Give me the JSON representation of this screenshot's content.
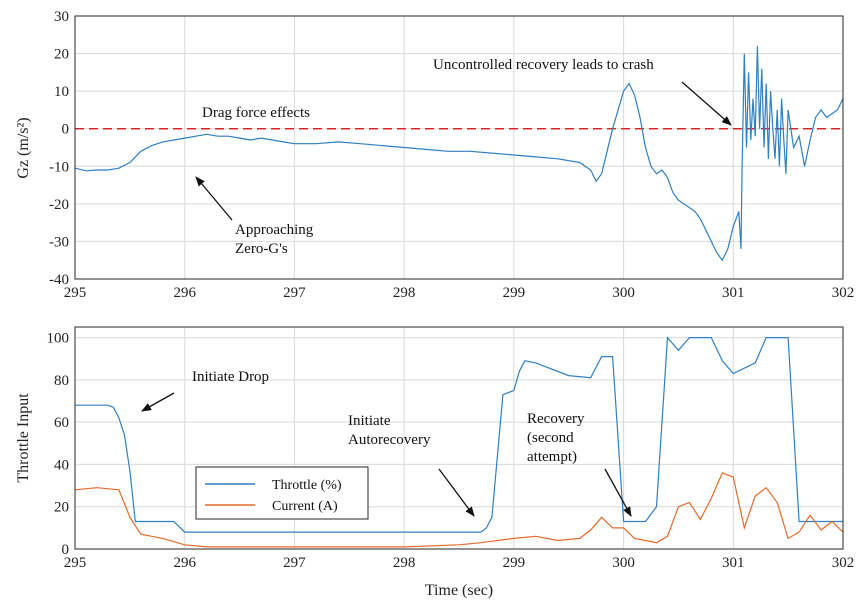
{
  "chart_data": [
    {
      "type": "line",
      "title": "",
      "xlabel": "",
      "ylabel": "Gz (m/s²)",
      "xlim": [
        295,
        302
      ],
      "ylim": [
        -40,
        30
      ],
      "xticks": [
        "295",
        "296",
        "297",
        "298",
        "299",
        "300",
        "301",
        "302"
      ],
      "yticks": [
        "30",
        "20",
        "10",
        "0",
        "-10",
        "-20",
        "-30",
        "-40"
      ],
      "grid": true,
      "reference_line": {
        "y": 0,
        "color": "#d62728",
        "style": "dashed"
      },
      "series": [
        {
          "color": "#2f7fc1",
          "x": [
            295.0,
            295.1,
            295.2,
            295.3,
            295.4,
            295.5,
            295.6,
            295.7,
            295.8,
            295.9,
            296.0,
            296.1,
            296.2,
            296.3,
            296.4,
            296.5,
            296.6,
            296.7,
            296.8,
            296.9,
            297.0,
            297.2,
            297.4,
            297.6,
            297.8,
            298.0,
            298.2,
            298.4,
            298.6,
            298.8,
            299.0,
            299.2,
            299.4,
            299.6,
            299.7,
            299.75,
            299.8,
            299.85,
            299.9,
            299.95,
            300.0,
            300.05,
            300.1,
            300.15,
            300.2,
            300.25,
            300.3,
            300.35,
            300.4,
            300.45,
            300.5,
            300.55,
            300.6,
            300.65,
            300.7,
            300.75,
            300.8,
            300.85,
            300.9,
            300.95,
            301.0,
            301.05,
            301.07,
            301.08,
            301.1,
            301.12,
            301.14,
            301.16,
            301.18,
            301.2,
            301.22,
            301.24,
            301.26,
            301.28,
            301.3,
            301.32,
            301.34,
            301.36,
            301.38,
            301.4,
            301.42,
            301.44,
            301.46,
            301.48,
            301.5,
            301.55,
            301.6,
            301.65,
            301.7,
            301.75,
            301.8,
            301.85,
            301.9,
            301.95,
            302.0
          ],
          "y": [
            -10.5,
            -11.2,
            -11,
            -11,
            -10.5,
            -9,
            -6,
            -4.5,
            -3.5,
            -3,
            -2.5,
            -2,
            -1.5,
            -2,
            -2,
            -2.5,
            -3,
            -2.5,
            -3,
            -3.5,
            -4,
            -4,
            -3.5,
            -4,
            -4.5,
            -5,
            -5.5,
            -6,
            -6,
            -6.5,
            -7,
            -7.5,
            -8,
            -9,
            -11,
            -14,
            -12,
            -6,
            0,
            5,
            10,
            12,
            9,
            3,
            -5,
            -10,
            -12,
            -11,
            -13,
            -17,
            -19,
            -20,
            -21,
            -22,
            -24,
            -27,
            -30,
            -33,
            -35,
            -32,
            -26,
            -22,
            -32,
            -10,
            20,
            -5,
            15,
            -3,
            8,
            -2,
            22,
            0,
            16,
            -5,
            12,
            -8,
            10,
            0,
            -8,
            5,
            -10,
            8,
            -3,
            -12,
            5,
            -5,
            -2,
            -10,
            -3,
            3,
            5,
            3,
            4,
            5,
            8
          ]
        }
      ],
      "annotations": [
        {
          "text": "Drag force effects",
          "x": 296.2,
          "y": 2.5
        },
        {
          "text": "Uncontrolled recovery leads to crash",
          "x": 299.9,
          "y": 23
        },
        {
          "text": "Approaching",
          "x": 296.5,
          "y": -25
        },
        {
          "text": "Zero-G's",
          "x": 296.5,
          "y": -30
        }
      ]
    },
    {
      "type": "line",
      "title": "",
      "xlabel": "Time (sec)",
      "ylabel": "Throttle Input",
      "xlim": [
        295,
        302
      ],
      "ylim": [
        0,
        105
      ],
      "xticks": [
        "295",
        "296",
        "297",
        "298",
        "299",
        "300",
        "301",
        "302"
      ],
      "yticks": [
        "100",
        "80",
        "60",
        "40",
        "20",
        "0"
      ],
      "grid": true,
      "legend_position": "bottom-left",
      "series": [
        {
          "name": "Throttle (%)",
          "color": "#2f7fc1",
          "x": [
            295.0,
            295.3,
            295.35,
            295.4,
            295.45,
            295.5,
            295.55,
            295.9,
            296.0,
            296.5,
            297.0,
            298.0,
            298.6,
            298.7,
            298.75,
            298.8,
            298.9,
            299.0,
            299.05,
            299.1,
            299.2,
            299.5,
            299.7,
            299.8,
            299.9,
            300.0,
            300.2,
            300.3,
            300.4,
            300.5,
            300.6,
            300.7,
            300.8,
            300.9,
            301.0,
            301.2,
            301.3,
            301.5,
            301.6,
            301.7,
            301.8,
            302.0
          ],
          "y": [
            68,
            68,
            67,
            62,
            54,
            37,
            13,
            13,
            8,
            8,
            8,
            8,
            8,
            8,
            10,
            15,
            73,
            75,
            84,
            89,
            88,
            82,
            81,
            91,
            91,
            13,
            13,
            20,
            100,
            94,
            100,
            100,
            100,
            89,
            83,
            88,
            100,
            100,
            13,
            13,
            13,
            13
          ]
        },
        {
          "name": "Current (A)",
          "color": "#e36a2c",
          "x": [
            295.0,
            295.2,
            295.4,
            295.5,
            295.6,
            295.7,
            295.8,
            296.0,
            296.2,
            296.5,
            297.0,
            298.0,
            298.5,
            298.7,
            299.0,
            299.2,
            299.4,
            299.6,
            299.7,
            299.8,
            299.9,
            300.0,
            300.1,
            300.2,
            300.3,
            300.4,
            300.5,
            300.6,
            300.7,
            300.8,
            300.9,
            301.0,
            301.1,
            301.2,
            301.3,
            301.4,
            301.5,
            301.6,
            301.7,
            301.8,
            301.9,
            302.0
          ],
          "y": [
            28,
            29,
            28,
            15,
            7,
            6,
            5,
            2,
            1,
            1,
            1,
            1,
            2,
            3,
            5,
            6,
            4,
            5,
            9,
            15,
            10,
            10,
            5,
            4,
            3,
            6,
            20,
            22,
            14,
            24,
            36,
            34,
            10,
            25,
            29,
            22,
            5,
            8,
            16,
            9,
            13,
            8
          ]
        }
      ],
      "annotations": [
        {
          "text": "Initiate Drop",
          "x": 295.8,
          "y": 76
        },
        {
          "text": "Initiate",
          "x": 298.0,
          "y": 60
        },
        {
          "text": "Autorecovery",
          "x": 298.0,
          "y": 50
        },
        {
          "text": "Recovery",
          "x": 299.5,
          "y": 56
        },
        {
          "text": "(second",
          "x": 299.5,
          "y": 47
        },
        {
          "text": "attempt)",
          "x": 299.5,
          "y": 38
        }
      ]
    }
  ]
}
